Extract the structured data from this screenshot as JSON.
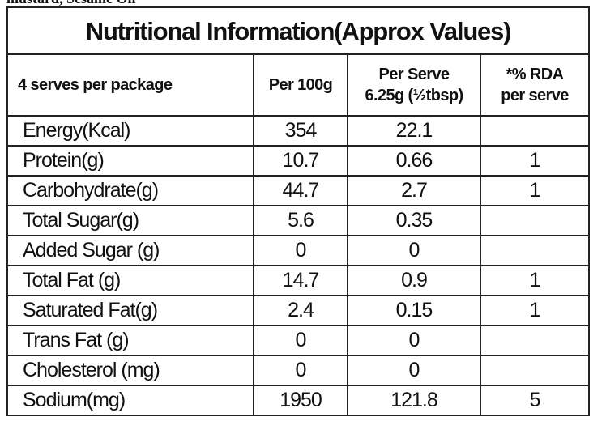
{
  "top_text": "mustard, Sesame Oil",
  "table": {
    "title": "Nutritional Information(Approx Values)",
    "header": [
      [
        "4 serves per package"
      ],
      [
        "Per 100g"
      ],
      [
        "Per Serve",
        "6.25g (½tbsp)"
      ],
      [
        "*% RDA",
        "per serve"
      ]
    ],
    "rows": [
      [
        "Energy(Kcal)",
        354,
        22.1,
        null
      ],
      [
        "Protein(g)",
        10.7,
        0.66,
        1
      ],
      [
        "Carbohydrate(g)",
        44.7,
        2.7,
        1
      ],
      [
        "Total Sugar(g)",
        5.6,
        0.35,
        null
      ],
      [
        "Added Sugar (g)",
        0,
        0,
        null
      ],
      [
        "Total Fat (g)",
        14.7,
        0.9,
        1
      ],
      [
        "Saturated Fat(g)",
        2.4,
        0.15,
        1
      ],
      [
        "Trans Fat (g)",
        0,
        0,
        null
      ],
      [
        "Cholesterol (mg)",
        0,
        0,
        null
      ],
      [
        "Sodium(mg)",
        1950,
        121.8,
        5
      ]
    ]
  }
}
